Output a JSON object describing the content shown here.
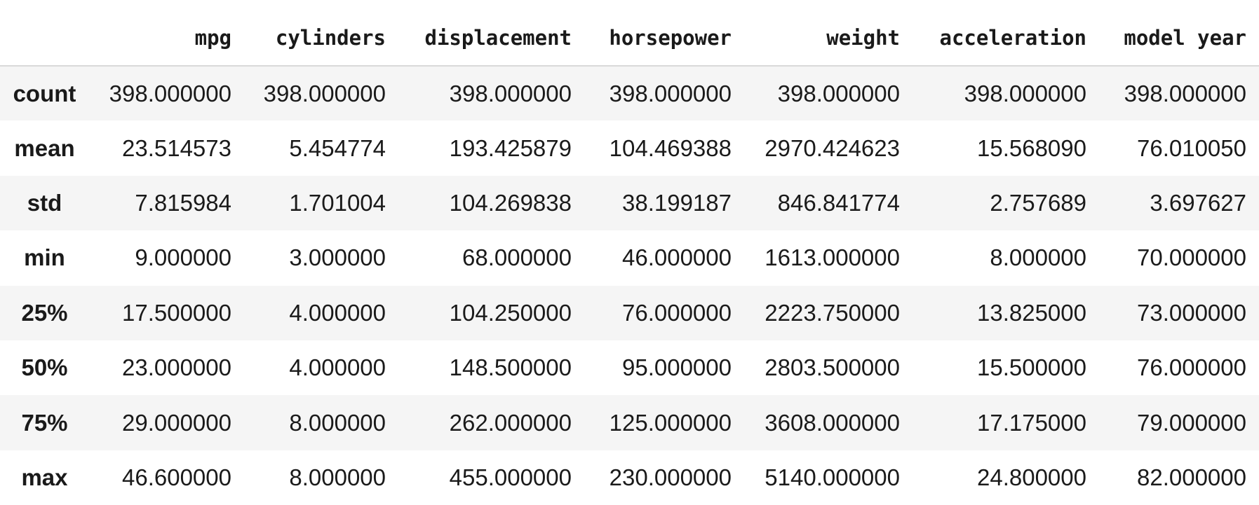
{
  "table": {
    "columns": [
      "mpg",
      "cylinders",
      "displacement",
      "horsepower",
      "weight",
      "acceleration",
      "model year"
    ],
    "rows": [
      {
        "label": "count",
        "values": [
          "398.000000",
          "398.000000",
          "398.000000",
          "398.000000",
          "398.000000",
          "398.000000",
          "398.000000"
        ]
      },
      {
        "label": "mean",
        "values": [
          "23.514573",
          "5.454774",
          "193.425879",
          "104.469388",
          "2970.424623",
          "15.568090",
          "76.010050"
        ]
      },
      {
        "label": "std",
        "values": [
          "7.815984",
          "1.701004",
          "104.269838",
          "38.199187",
          "846.841774",
          "2.757689",
          "3.697627"
        ]
      },
      {
        "label": "min",
        "values": [
          "9.000000",
          "3.000000",
          "68.000000",
          "46.000000",
          "1613.000000",
          "8.000000",
          "70.000000"
        ]
      },
      {
        "label": "25%",
        "values": [
          "17.500000",
          "4.000000",
          "104.250000",
          "76.000000",
          "2223.750000",
          "13.825000",
          "73.000000"
        ]
      },
      {
        "label": "50%",
        "values": [
          "23.000000",
          "4.000000",
          "148.500000",
          "95.000000",
          "2803.500000",
          "15.500000",
          "76.000000"
        ]
      },
      {
        "label": "75%",
        "values": [
          "29.000000",
          "8.000000",
          "262.000000",
          "125.000000",
          "3608.000000",
          "17.175000",
          "79.000000"
        ]
      },
      {
        "label": "max",
        "values": [
          "46.600000",
          "8.000000",
          "455.000000",
          "230.000000",
          "5140.000000",
          "24.800000",
          "82.000000"
        ]
      }
    ]
  }
}
